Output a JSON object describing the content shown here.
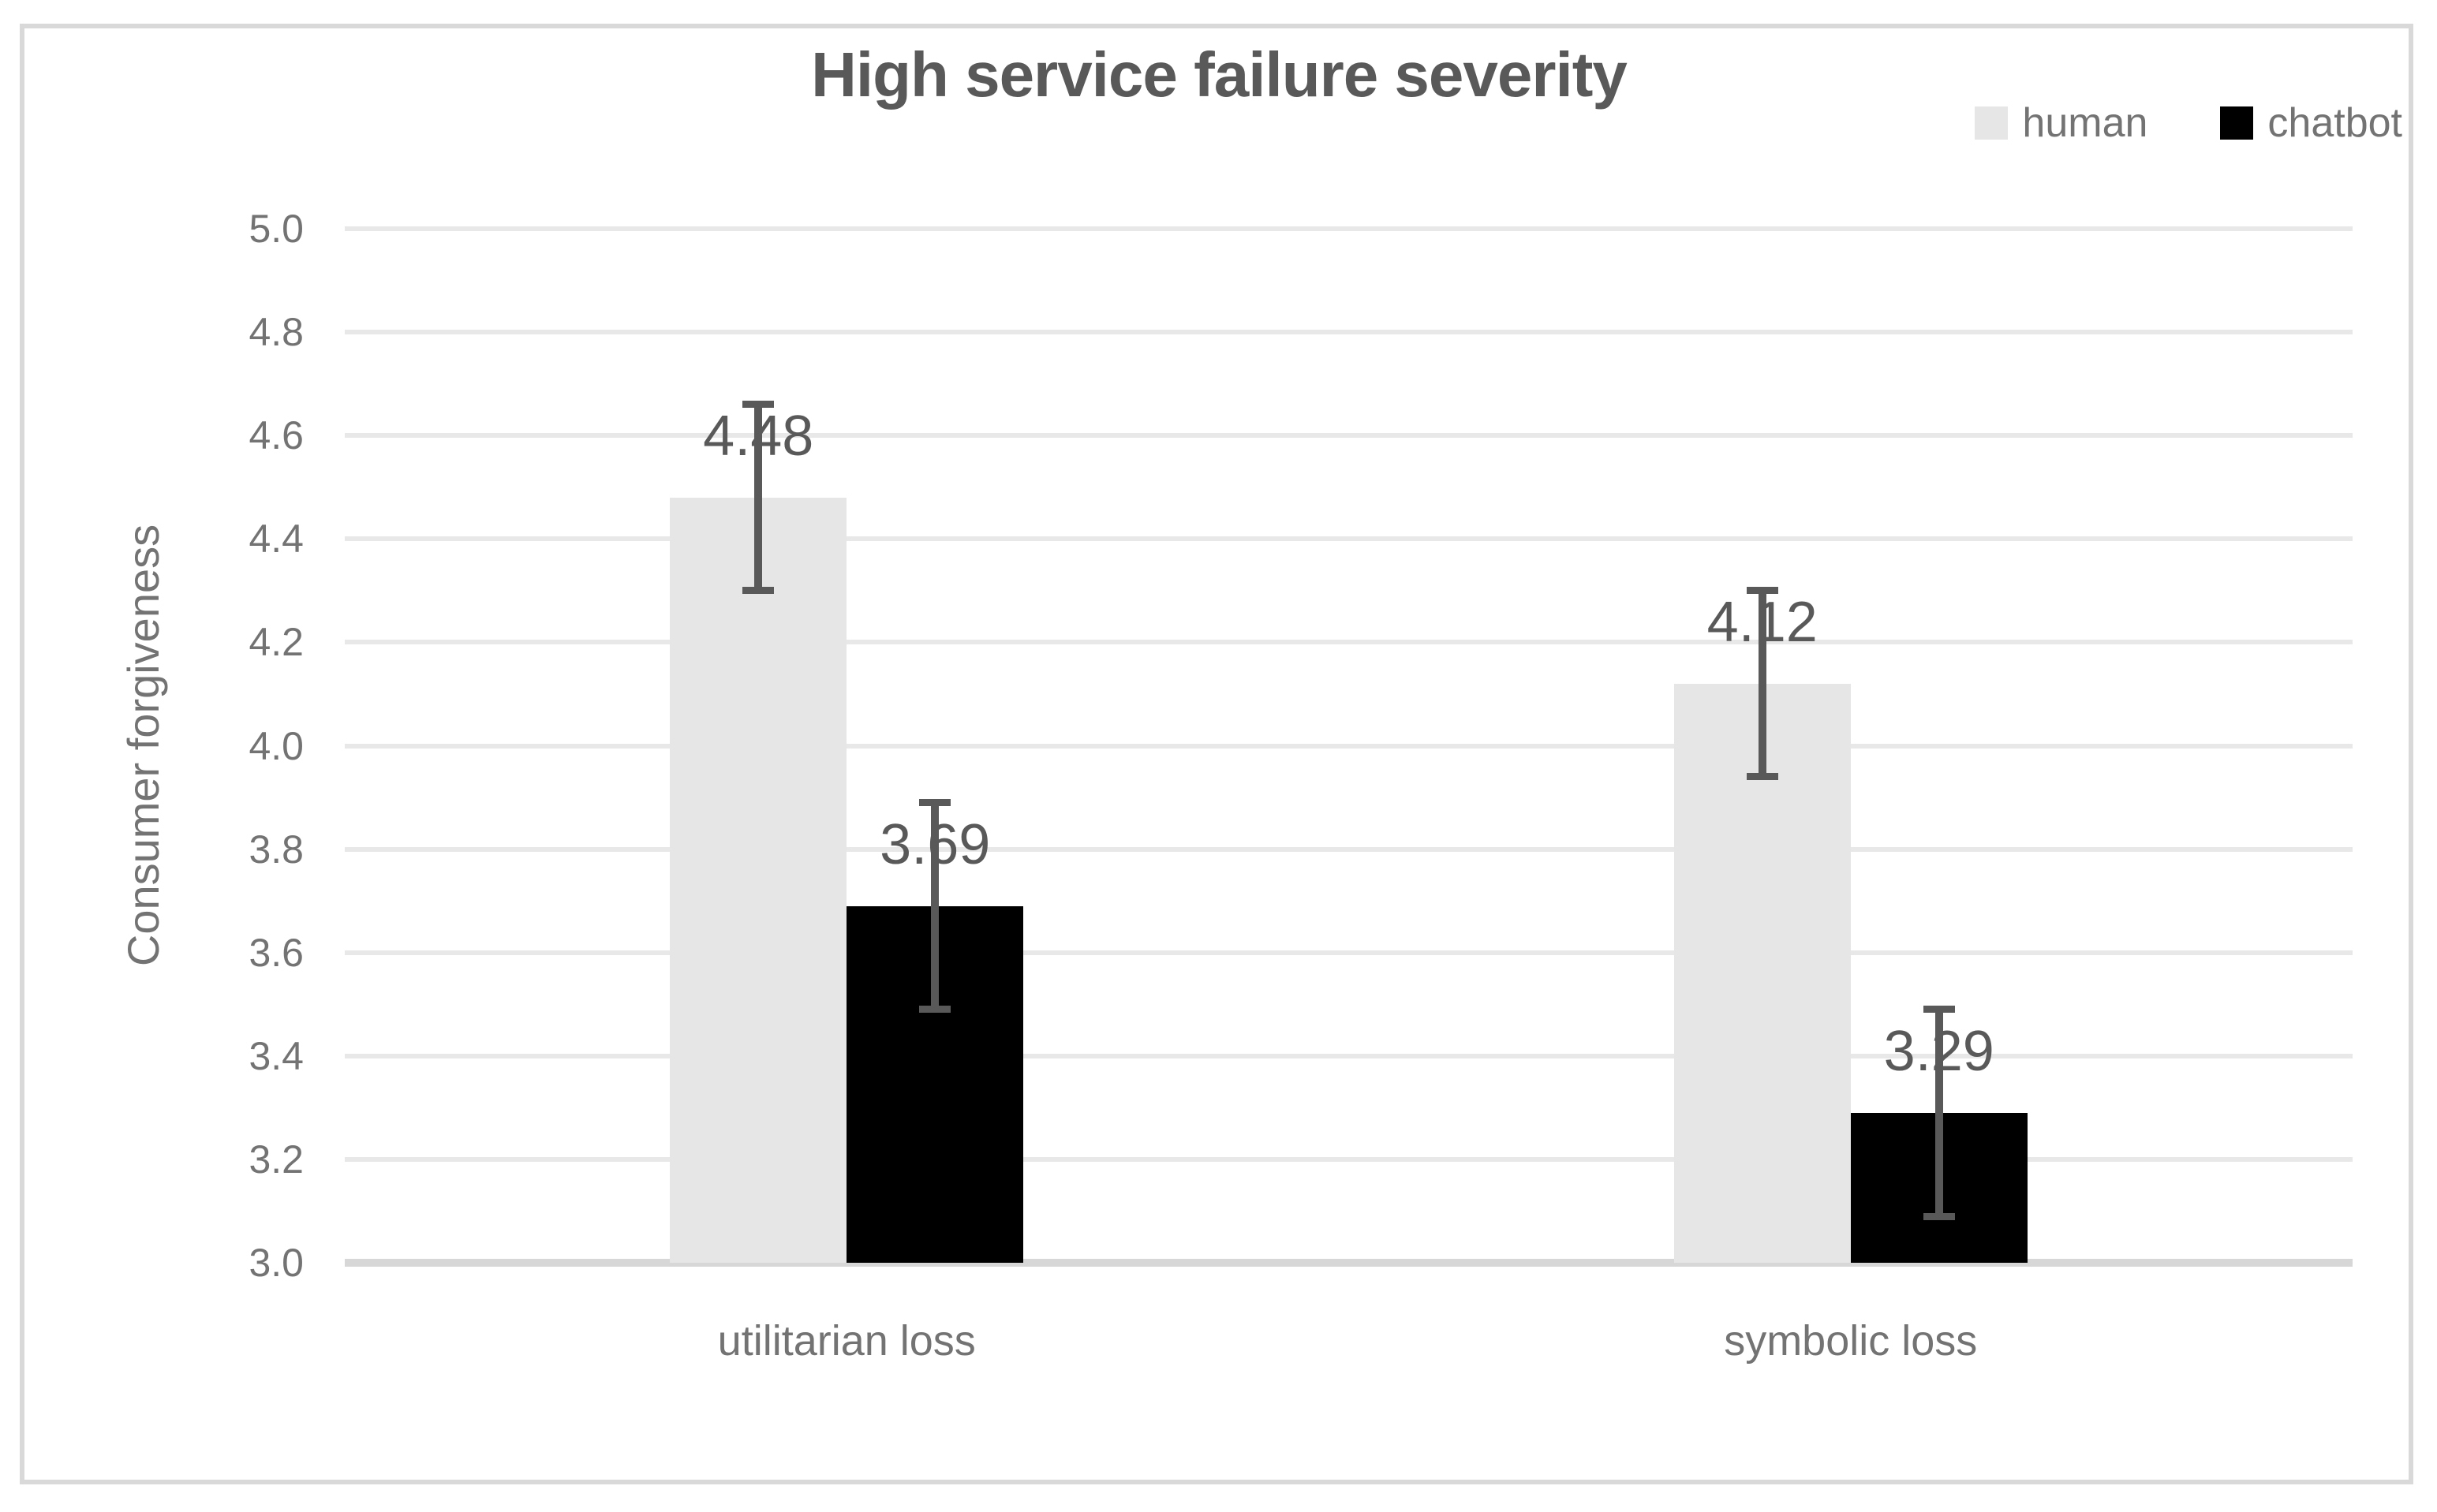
{
  "chart_data": {
    "type": "bar",
    "title": "High service failure severity",
    "categories": [
      "utilitarian loss",
      "symbolic loss"
    ],
    "series": [
      {
        "name": "human",
        "color": "#e6e6e6",
        "values": [
          4.48,
          4.12
        ],
        "errors": [
          0.18,
          0.18
        ]
      },
      {
        "name": "chatbot",
        "color": "#000000",
        "values": [
          3.69,
          3.29
        ],
        "errors": [
          0.2,
          0.2
        ]
      }
    ],
    "data_labels": [
      [
        "4.48",
        "4.12"
      ],
      [
        "3.69",
        "3.29"
      ]
    ],
    "xlabel": "",
    "ylabel": "Consumer forgiveness",
    "ylim": [
      3.0,
      5.0
    ],
    "ytick_step": 0.2,
    "ytick_labels": [
      "3.0",
      "3.2",
      "3.4",
      "3.6",
      "3.8",
      "4.0",
      "4.2",
      "4.4",
      "4.6",
      "4.8",
      "5.0"
    ],
    "grid": true,
    "legend_position": "top-right",
    "error_bars": true
  },
  "styles": {
    "title_color": "#595959",
    "axis_text_color": "#737373",
    "data_label_color": "#595959",
    "gridline_color": "#e8e8e8",
    "baseline_color": "#d7d7d7",
    "frame_border_color": "#d9d9d9",
    "error_bar_color": "#595959",
    "background_color": "#ffffff"
  }
}
